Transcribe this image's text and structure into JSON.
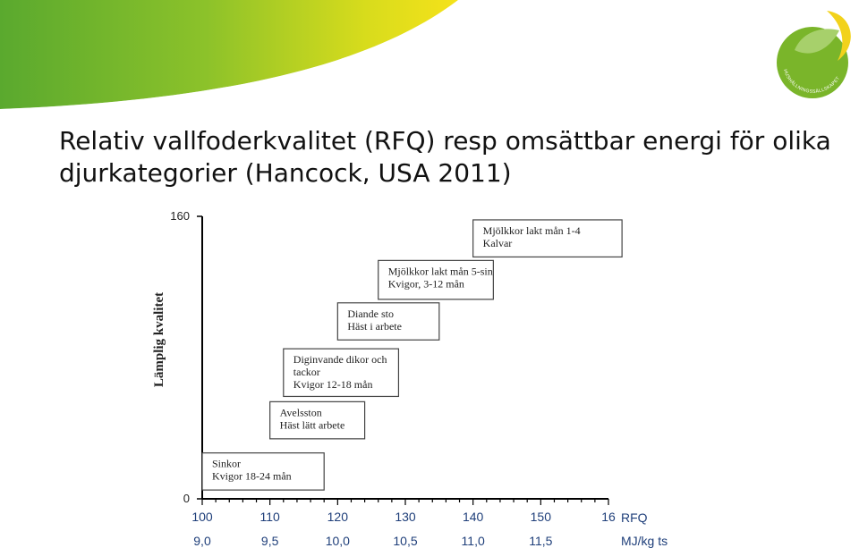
{
  "page": {
    "title_line1": "Relativ vallfoderkvalitet (RFQ) resp omsättbar energi för olika",
    "title_line2": "djurkategorier (Hancock, USA 2011)"
  },
  "logo": {
    "text": "HUSHÅLLNINGSSÄLLSKAPET",
    "colors": {
      "green": "#7ab52a",
      "yellow": "#f2d21b",
      "white": "#ffffff"
    }
  },
  "banner": {
    "colors": {
      "green": "#6db32c",
      "yellow": "#f5e21a"
    }
  },
  "chart_data": {
    "type": "box",
    "ylabel": "Lämplig kvalitet",
    "y_ticks": [
      "0",
      "160"
    ],
    "ylim": [
      0,
      160
    ],
    "xlim": [
      100,
      160
    ],
    "x_ticks": [
      "100",
      "110",
      "120",
      "130",
      "140",
      "150",
      "16"
    ],
    "x_unit_label": "RFQ",
    "energy_ticks": [
      "9,0",
      "9,5",
      "10,0",
      "10,5",
      "11,0",
      "11,5"
    ],
    "energy_unit_label": "MJ/kg ts",
    "boxes": [
      {
        "lines": [
          "Sinkor",
          "Kvigor 18-24 mån"
        ],
        "rfq_range": [
          100,
          118
        ],
        "y_range": [
          5,
          26
        ]
      },
      {
        "lines": [
          "Avelsston",
          "Häst lätt arbete"
        ],
        "rfq_range": [
          110,
          124
        ],
        "y_range": [
          34,
          55
        ]
      },
      {
        "lines": [
          "Diginvande  dikor och",
          "tackor",
          "Kvigor 12-18 mån"
        ],
        "rfq_range": [
          112,
          129
        ],
        "y_range": [
          58,
          85
        ]
      },
      {
        "lines": [
          "Diande sto",
          "Häst i arbete"
        ],
        "rfq_range": [
          120,
          135
        ],
        "y_range": [
          90,
          111
        ]
      },
      {
        "lines": [
          "Mjölkkor lakt mån 5-sin",
          "Kvigor, 3-12 mån"
        ],
        "rfq_range": [
          126,
          143
        ],
        "y_range": [
          113,
          135
        ]
      },
      {
        "lines": [
          "Mjölkkor lakt mån 1-4",
          "Kalvar"
        ],
        "rfq_range": [
          140,
          162
        ],
        "y_range": [
          137,
          158
        ]
      }
    ],
    "grid": false,
    "legend": "none"
  }
}
